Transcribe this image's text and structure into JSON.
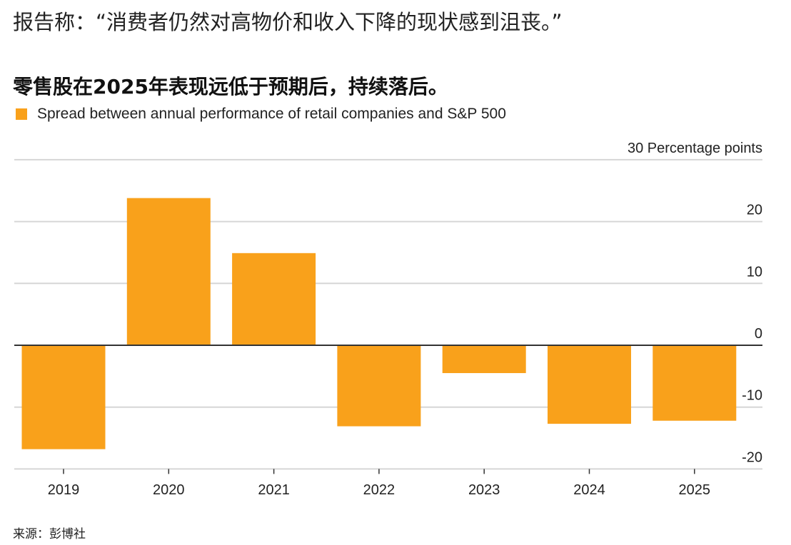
{
  "quote": "报告称：“消费者仍然对高物价和收入下降的现状感到沮丧。”",
  "source": "来源：彭博社",
  "colors": {
    "bar": "#f9a11b",
    "grid": "#d6d6d6",
    "zero": "#333333"
  },
  "chart_data": {
    "type": "bar",
    "title": "零售股在2025年表现远低于预期后，持续落后。",
    "legend": "Spread between annual performance of retail companies and S&P 500",
    "legend_position": "top-left",
    "categories": [
      "2019",
      "2020",
      "2021",
      "2022",
      "2023",
      "2024",
      "2025"
    ],
    "values": [
      -16.8,
      23.8,
      14.9,
      -13.1,
      -4.5,
      -12.7,
      -12.2
    ],
    "ylabel": "Percentage points",
    "ylim": [
      -20,
      30
    ],
    "yticks": [
      30,
      20,
      10,
      0,
      -10,
      -20
    ],
    "ytick_labels": [
      "30 Percentage points",
      "20",
      "10",
      "0",
      "-10",
      "-20"
    ],
    "grid": true
  }
}
